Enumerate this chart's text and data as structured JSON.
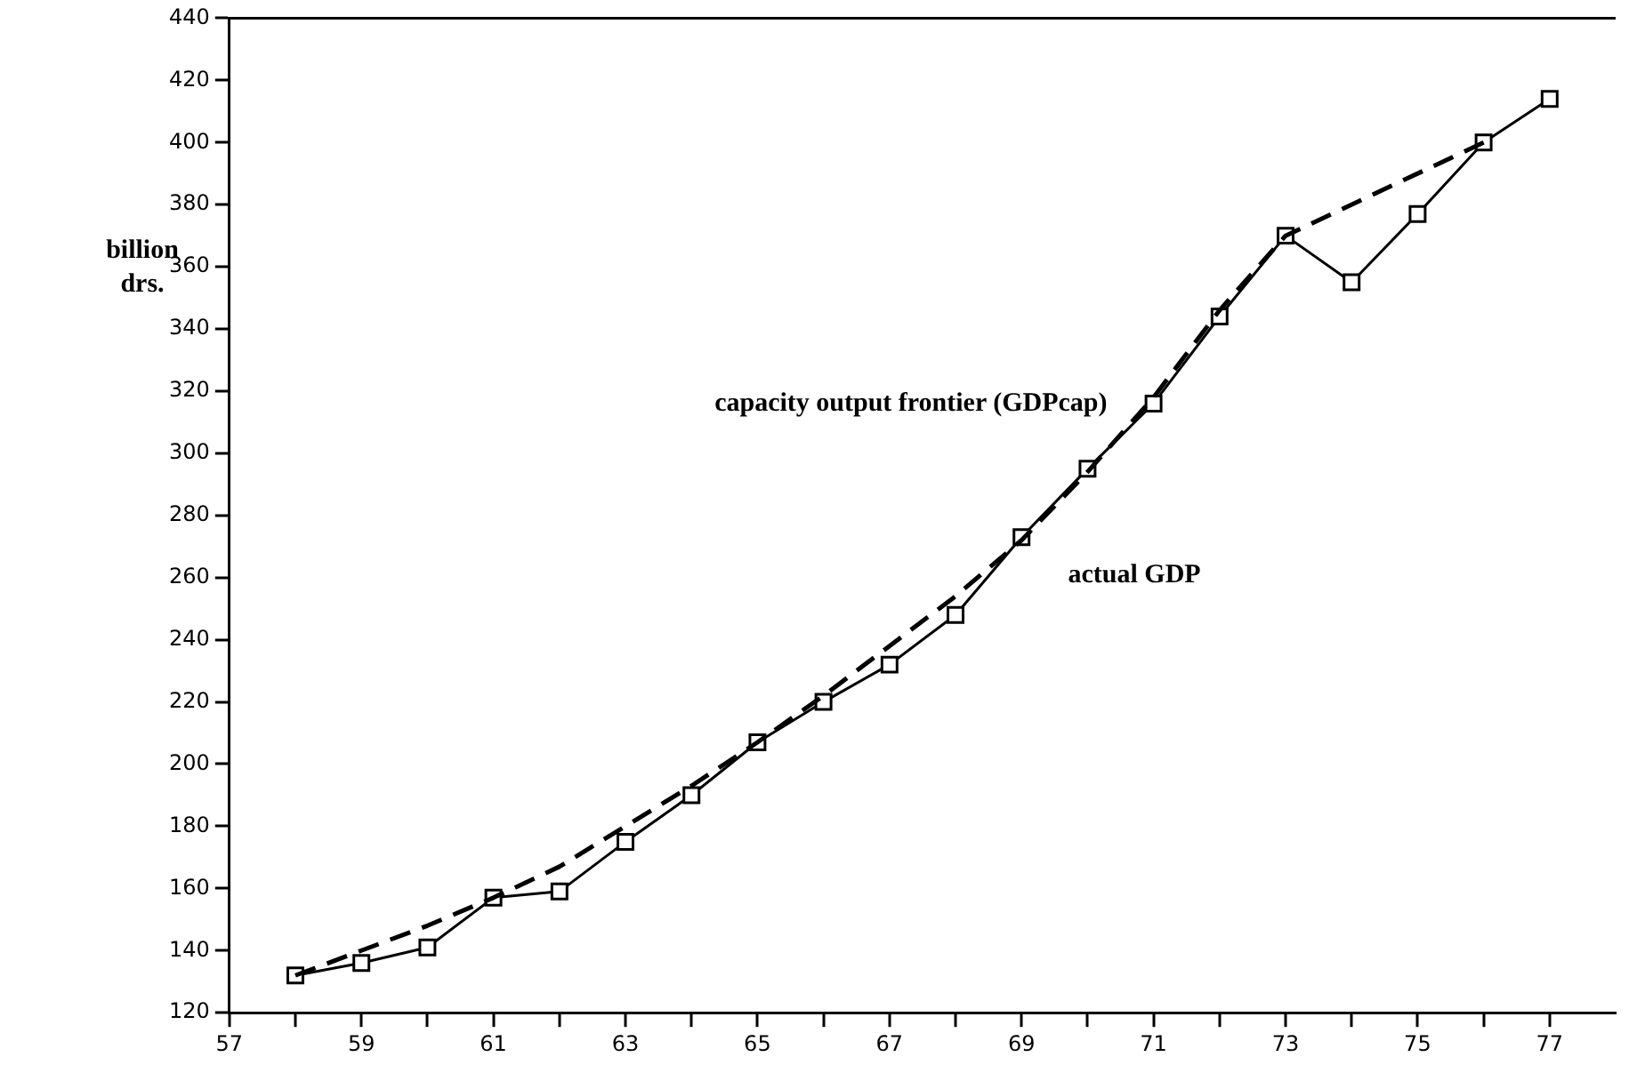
{
  "chart_data": {
    "type": "line",
    "ylabel": "billion drs.",
    "xlim": [
      57,
      78
    ],
    "xticks": [
      57,
      {
        "value": 58,
        "label": null
      },
      59,
      {
        "value": 60,
        "label": null
      },
      61,
      {
        "value": 62,
        "label": null
      },
      63,
      {
        "value": 64,
        "label": null
      },
      65,
      {
        "value": 66,
        "label": null
      },
      67,
      {
        "value": 68,
        "label": null
      },
      69,
      {
        "value": 70,
        "label": null
      },
      71,
      {
        "value": 72,
        "label": null
      },
      73,
      {
        "value": 74,
        "label": null
      },
      75,
      {
        "value": 76,
        "label": null
      },
      77
    ],
    "ylim": [
      120,
      440
    ],
    "yticks": [
      120,
      140,
      160,
      180,
      200,
      220,
      240,
      260,
      280,
      300,
      320,
      340,
      360,
      380,
      400,
      420,
      440
    ],
    "grid": false,
    "legend": false,
    "series": [
      {
        "name": "actual GDP",
        "color": "#000000",
        "marker": "square",
        "line_style": "solid",
        "x": [
          58,
          59,
          60,
          61,
          62,
          63,
          64,
          65,
          66,
          67,
          68,
          69,
          70,
          71,
          72,
          73,
          74,
          75,
          76,
          77
        ],
        "values": [
          132,
          136,
          141,
          157,
          159,
          175,
          190,
          207,
          220,
          232,
          248,
          273,
          295,
          316,
          344,
          370,
          355,
          377,
          400,
          414
        ]
      },
      {
        "name": "capacity output frontier (GDPcap)",
        "color": "#000000",
        "marker": "none",
        "line_style": "dashed",
        "x": [
          58,
          59,
          60,
          61,
          62,
          63,
          64,
          65,
          66,
          67,
          68,
          69,
          70,
          71,
          72,
          73,
          76
        ],
        "values": [
          132,
          140,
          148,
          157,
          167,
          180,
          193,
          207,
          222,
          238,
          254,
          272,
          294,
          318,
          346,
          370,
          400
        ]
      }
    ]
  }
}
